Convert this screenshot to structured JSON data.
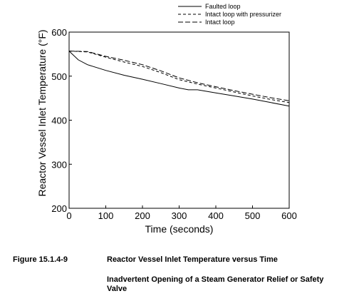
{
  "chart_data": {
    "type": "line",
    "title": "",
    "xlabel": "Time (seconds)",
    "ylabel": "Reactor Vessel Inlet Temperature (°F)",
    "xlim": [
      0,
      600
    ],
    "ylim": [
      200,
      600
    ],
    "x_ticks": [
      0,
      100,
      200,
      300,
      400,
      500,
      600
    ],
    "y_ticks": [
      200,
      300,
      400,
      500,
      600
    ],
    "x_tick_labels": [
      "0",
      "100",
      "200",
      "300",
      "400",
      "500",
      "600"
    ],
    "y_tick_labels": [
      "200",
      "300",
      "400",
      "500",
      "600"
    ],
    "grid": false,
    "legend_position": "top-right, above plot",
    "series": [
      {
        "name": "Faulted loop",
        "style": "solid",
        "color": "#000000",
        "x": [
          0,
          25,
          50,
          100,
          150,
          200,
          250,
          300,
          325,
          350,
          400,
          450,
          500,
          550,
          600
        ],
        "y": [
          557,
          537,
          526,
          513,
          502,
          493,
          483,
          473,
          469,
          469,
          462,
          455,
          448,
          440,
          432
        ]
      },
      {
        "name": "Intact loop with pressurizer",
        "style": "dashed",
        "color": "#000000",
        "x": [
          0,
          50,
          100,
          150,
          200,
          250,
          300,
          350,
          400,
          450,
          500,
          550,
          600
        ],
        "y": [
          557,
          555,
          543,
          532,
          522,
          508,
          492,
          482,
          473,
          464,
          455,
          447,
          440
        ]
      },
      {
        "name": "Intact loop",
        "style": "long-dashed",
        "color": "#000000",
        "x": [
          0,
          50,
          100,
          150,
          200,
          250,
          300,
          350,
          400,
          450,
          500,
          550,
          600
        ],
        "y": [
          557,
          556,
          545,
          536,
          526,
          512,
          496,
          485,
          476,
          467,
          459,
          451,
          444
        ]
      }
    ]
  },
  "caption": {
    "figure_number": "Figure 15.1.4-9",
    "title": "Reactor Vessel Inlet Temperature versus Time",
    "subtitle": "Inadvertent Opening of a Steam Generator Relief or Safety Valve"
  }
}
